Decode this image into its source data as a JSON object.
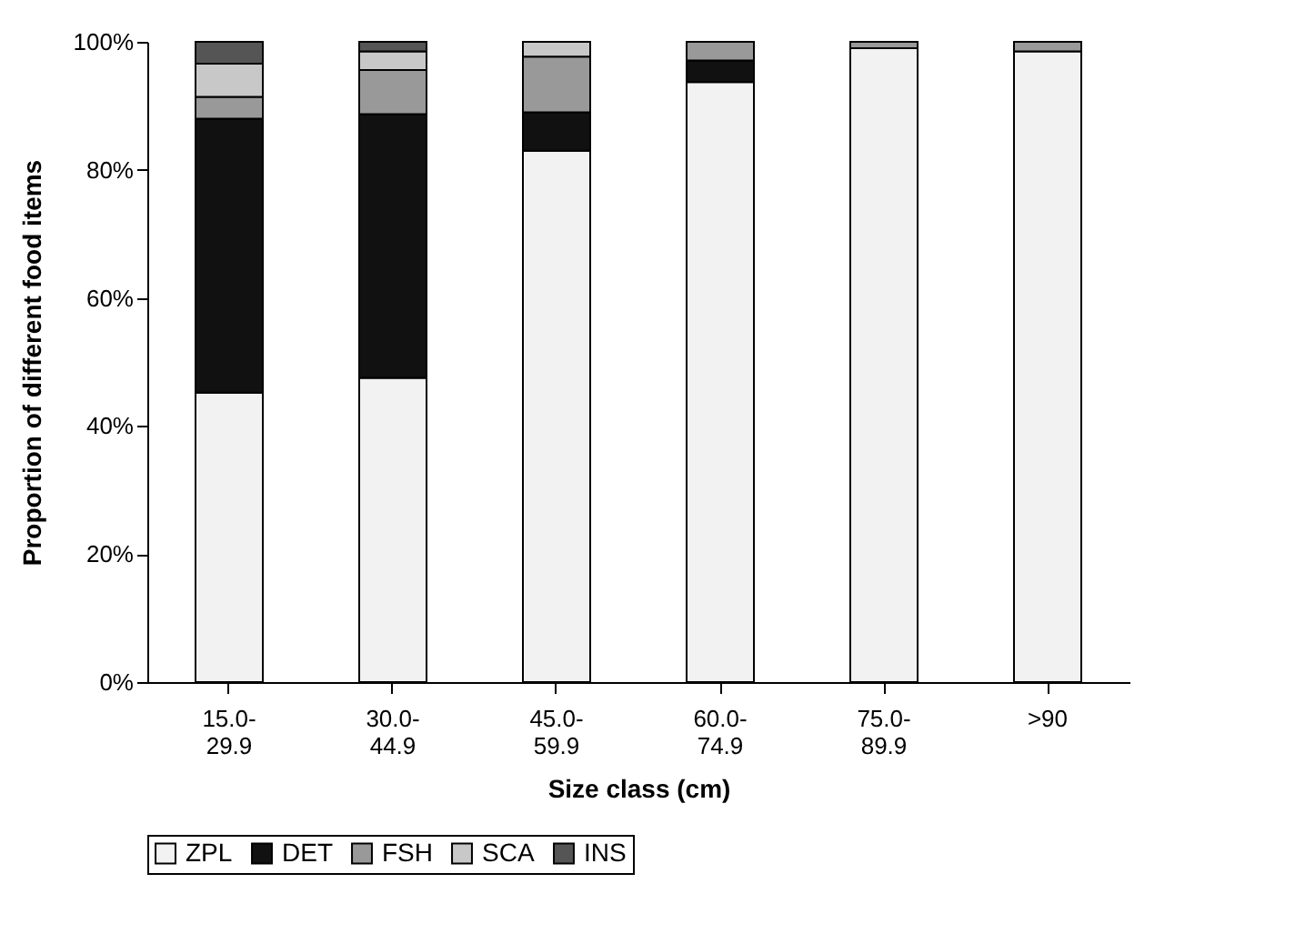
{
  "chart_data": {
    "type": "bar",
    "stacked": true,
    "xlabel": "Size class (cm)",
    "ylabel": "Proportion of different food items",
    "categories": [
      "15.0-29.9",
      "30.0-44.9",
      "45.0-59.9",
      "60.0-74.9",
      "75.0-89.9",
      ">90"
    ],
    "series": [
      {
        "name": "ZPL",
        "color": "#f2f2f2",
        "values": [
          45.2,
          47.5,
          83.0,
          93.7,
          99.0,
          98.5
        ]
      },
      {
        "name": "DET",
        "color": "#111111",
        "values": [
          42.8,
          41.2,
          6.0,
          3.4,
          0,
          0
        ]
      },
      {
        "name": "FSH",
        "color": "#999999",
        "values": [
          3.4,
          6.9,
          8.7,
          2.9,
          1.0,
          1.5
        ]
      },
      {
        "name": "SCA",
        "color": "#c8c8c8",
        "values": [
          5.2,
          2.9,
          2.3,
          0,
          0,
          0
        ]
      },
      {
        "name": "INS",
        "color": "#555555",
        "values": [
          3.4,
          1.5,
          0,
          0,
          0,
          0
        ]
      }
    ],
    "ylim": [
      0,
      100
    ],
    "yticks": [
      {
        "value": 0,
        "label": "0%"
      },
      {
        "value": 20,
        "label": "20%"
      },
      {
        "value": 40,
        "label": "40%"
      },
      {
        "value": 60,
        "label": "60%"
      },
      {
        "value": 80,
        "label": "80%"
      },
      {
        "value": 100,
        "label": "100%"
      }
    ],
    "grid": false,
    "legend": "bottom"
  }
}
